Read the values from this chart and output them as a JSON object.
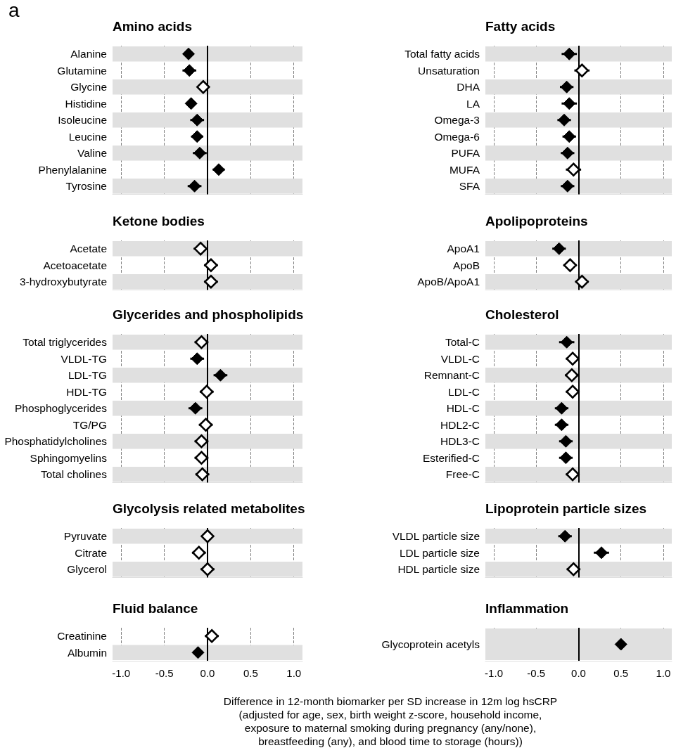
{
  "chart_data": [
    {
      "type": "scatter",
      "orientation": "horizontal",
      "title": "Amino acids",
      "annotations": [
        "a"
      ],
      "categories": [
        "Alanine",
        "Glutamine",
        "Glycine",
        "Histidine",
        "Isoleucine",
        "Leucine",
        "Valine",
        "Phenylalanine",
        "Tyrosine"
      ],
      "series": [
        {
          "color": "#000000",
          "values": [
            -0.22,
            -0.21,
            null,
            -0.19,
            -0.12,
            -0.12,
            -0.09,
            0.13,
            -0.15
          ],
          "errors": [
            0.06,
            0.08,
            null,
            0.06,
            0.08,
            0.07,
            0.08,
            0.07,
            0.08
          ]
        },
        {
          "color": "#ffffff",
          "values": [
            null,
            null,
            -0.05,
            null,
            null,
            null,
            null,
            null,
            null
          ],
          "errors": [
            null,
            null,
            0.06,
            null,
            null,
            null,
            null,
            null,
            null
          ]
        }
      ],
      "xlim": [
        -1.1,
        1.1
      ],
      "xticks": [
        -1,
        -0.5,
        0,
        0.5,
        1
      ],
      "grid": "x",
      "marker": "diamond",
      "tick_labels": "y",
      "ref_lines": [
        {
          "axis": "x",
          "value": 0,
          "color": "#000000"
        }
      ],
      "bands": [
        {
          "axis": "y",
          "from": "Alanine",
          "to": "Alanine",
          "color": "#e0e0e0"
        },
        {
          "axis": "y",
          "from": "Glycine",
          "to": "Glycine",
          "color": "#e0e0e0"
        },
        {
          "axis": "y",
          "from": "Isoleucine",
          "to": "Isoleucine",
          "color": "#e0e0e0"
        },
        {
          "axis": "y",
          "from": "Valine",
          "to": "Valine",
          "color": "#e0e0e0"
        },
        {
          "axis": "y",
          "from": "Tyrosine",
          "to": "Tyrosine",
          "color": "#e0e0e0"
        }
      ]
    },
    {
      "type": "scatter",
      "orientation": "horizontal",
      "title": "Fatty acids",
      "categories": [
        "Total fatty acids",
        "Unsaturation",
        "DHA",
        "LA",
        "Omega-3",
        "Omega-6",
        "PUFA",
        "MUFA",
        "SFA"
      ],
      "series": [
        {
          "color": "#000000",
          "values": [
            -0.11,
            null,
            -0.14,
            -0.11,
            -0.17,
            -0.11,
            -0.13,
            null,
            -0.13
          ],
          "errors": [
            0.09,
            null,
            0.08,
            0.09,
            0.08,
            0.08,
            0.08,
            null,
            0.08
          ]
        },
        {
          "color": "#ffffff",
          "values": [
            null,
            0.04,
            null,
            null,
            null,
            null,
            null,
            -0.06,
            null
          ],
          "errors": [
            null,
            0.09,
            null,
            null,
            null,
            null,
            null,
            0.09,
            null
          ]
        }
      ],
      "xlim": [
        -1.1,
        1.1
      ],
      "xticks": [
        -1,
        -0.5,
        0,
        0.5,
        1
      ],
      "grid": "x",
      "marker": "diamond",
      "tick_labels": "y",
      "ref_lines": [
        {
          "axis": "x",
          "value": 0,
          "color": "#000000"
        }
      ],
      "bands": [
        {
          "axis": "y",
          "from": "Total fatty acids",
          "to": "Total fatty acids",
          "color": "#e0e0e0"
        },
        {
          "axis": "y",
          "from": "DHA",
          "to": "DHA",
          "color": "#e0e0e0"
        },
        {
          "axis": "y",
          "from": "Omega-3",
          "to": "Omega-3",
          "color": "#e0e0e0"
        },
        {
          "axis": "y",
          "from": "PUFA",
          "to": "PUFA",
          "color": "#e0e0e0"
        },
        {
          "axis": "y",
          "from": "SFA",
          "to": "SFA",
          "color": "#e0e0e0"
        }
      ]
    },
    {
      "type": "scatter",
      "orientation": "horizontal",
      "title": "Ketone bodies",
      "categories": [
        "Acetate",
        "Acetoacetate",
        "3-hydroxybutyrate"
      ],
      "series": [
        {
          "color": "#ffffff",
          "values": [
            -0.08,
            0.04,
            0.04
          ],
          "errors": [
            0.08,
            0.08,
            0.08
          ]
        }
      ],
      "xlim": [
        -1.1,
        1.1
      ],
      "xticks": [
        -1,
        -0.5,
        0,
        0.5,
        1
      ],
      "grid": "x",
      "marker": "diamond",
      "tick_labels": "y",
      "ref_lines": [
        {
          "axis": "x",
          "value": 0,
          "color": "#000000"
        }
      ],
      "bands": [
        {
          "axis": "y",
          "from": "Acetate",
          "to": "Acetate",
          "color": "#e0e0e0"
        },
        {
          "axis": "y",
          "from": "3-hydroxybutyrate",
          "to": "3-hydroxybutyrate",
          "color": "#e0e0e0"
        }
      ]
    },
    {
      "type": "scatter",
      "orientation": "horizontal",
      "title": "Apolipoproteins",
      "categories": [
        "ApoA1",
        "ApoB",
        "ApoB/ApoA1"
      ],
      "series": [
        {
          "color": "#000000",
          "values": [
            -0.23,
            null,
            null
          ],
          "errors": [
            0.08,
            null,
            null
          ]
        },
        {
          "color": "#ffffff",
          "values": [
            null,
            -0.1,
            0.04
          ],
          "errors": [
            null,
            0.08,
            0.08
          ]
        }
      ],
      "xlim": [
        -1.1,
        1.1
      ],
      "xticks": [
        -1,
        -0.5,
        0,
        0.5,
        1
      ],
      "grid": "x",
      "marker": "diamond",
      "tick_labels": "y",
      "ref_lines": [
        {
          "axis": "x",
          "value": 0,
          "color": "#000000"
        }
      ],
      "bands": [
        {
          "axis": "y",
          "from": "ApoA1",
          "to": "ApoA1",
          "color": "#e0e0e0"
        },
        {
          "axis": "y",
          "from": "ApoB/ApoA1",
          "to": "ApoB/ApoA1",
          "color": "#e0e0e0"
        }
      ]
    },
    {
      "type": "scatter",
      "orientation": "horizontal",
      "title": "Glycerides and phospholipids",
      "categories": [
        "Total triglycerides",
        "VLDL-TG",
        "LDL-TG",
        "HDL-TG",
        "Phosphoglycerides",
        "TG/PG",
        "Phosphatidylcholines",
        "Sphingomyelins",
        "Total cholines"
      ],
      "series": [
        {
          "color": "#000000",
          "values": [
            null,
            -0.12,
            0.15,
            null,
            -0.14,
            null,
            null,
            null,
            null
          ],
          "errors": [
            null,
            0.08,
            0.08,
            null,
            0.08,
            null,
            null,
            null,
            null
          ]
        },
        {
          "color": "#ffffff",
          "values": [
            -0.07,
            null,
            null,
            -0.01,
            null,
            -0.02,
            -0.07,
            -0.07,
            -0.06
          ],
          "errors": [
            0.08,
            null,
            null,
            0.08,
            null,
            0.08,
            0.08,
            0.08,
            0.08
          ]
        }
      ],
      "xlim": [
        -1.1,
        1.1
      ],
      "xticks": [
        -1,
        -0.5,
        0,
        0.5,
        1
      ],
      "grid": "x",
      "marker": "diamond",
      "tick_labels": "y",
      "ref_lines": [
        {
          "axis": "x",
          "value": 0,
          "color": "#000000"
        }
      ],
      "bands": [
        {
          "axis": "y",
          "from": "Total triglycerides",
          "to": "Total triglycerides",
          "color": "#e0e0e0"
        },
        {
          "axis": "y",
          "from": "LDL-TG",
          "to": "LDL-TG",
          "color": "#e0e0e0"
        },
        {
          "axis": "y",
          "from": "Phosphoglycerides",
          "to": "Phosphoglycerides",
          "color": "#e0e0e0"
        },
        {
          "axis": "y",
          "from": "Phosphatidylcholines",
          "to": "Phosphatidylcholines",
          "color": "#e0e0e0"
        },
        {
          "axis": "y",
          "from": "Total cholines",
          "to": "Total cholines",
          "color": "#e0e0e0"
        }
      ]
    },
    {
      "type": "scatter",
      "orientation": "horizontal",
      "title": "Cholesterol",
      "categories": [
        "Total-C",
        "VLDL-C",
        "Remnant-C",
        "LDL-C",
        "HDL-C",
        "HDL2-C",
        "HDL3-C",
        "Esterified-C",
        "Free-C"
      ],
      "series": [
        {
          "color": "#000000",
          "values": [
            -0.14,
            null,
            null,
            null,
            -0.2,
            -0.2,
            -0.15,
            -0.15,
            null
          ],
          "errors": [
            0.09,
            null,
            null,
            null,
            0.08,
            0.08,
            0.08,
            0.08,
            null
          ]
        },
        {
          "color": "#ffffff",
          "values": [
            null,
            -0.07,
            -0.08,
            -0.07,
            null,
            null,
            null,
            null,
            -0.07
          ],
          "errors": [
            null,
            0.08,
            0.08,
            0.08,
            null,
            null,
            null,
            null,
            0.08
          ]
        }
      ],
      "xlim": [
        -1.1,
        1.1
      ],
      "xticks": [
        -1,
        -0.5,
        0,
        0.5,
        1
      ],
      "grid": "x",
      "marker": "diamond",
      "tick_labels": "y",
      "ref_lines": [
        {
          "axis": "x",
          "value": 0,
          "color": "#000000"
        }
      ],
      "bands": [
        {
          "axis": "y",
          "from": "Total-C",
          "to": "Total-C",
          "color": "#e0e0e0"
        },
        {
          "axis": "y",
          "from": "Remnant-C",
          "to": "Remnant-C",
          "color": "#e0e0e0"
        },
        {
          "axis": "y",
          "from": "HDL-C",
          "to": "HDL-C",
          "color": "#e0e0e0"
        },
        {
          "axis": "y",
          "from": "HDL3-C",
          "to": "HDL3-C",
          "color": "#e0e0e0"
        },
        {
          "axis": "y",
          "from": "Free-C",
          "to": "Free-C",
          "color": "#e0e0e0"
        }
      ]
    },
    {
      "type": "scatter",
      "orientation": "horizontal",
      "title": "Glycolysis related metabolites",
      "categories": [
        "Pyruvate",
        "Citrate",
        "Glycerol"
      ],
      "series": [
        {
          "color": "#ffffff",
          "values": [
            0.0,
            -0.1,
            0.0
          ],
          "errors": [
            0.06,
            0.08,
            0.08
          ]
        }
      ],
      "xlim": [
        -1.1,
        1.1
      ],
      "xticks": [
        -1,
        -0.5,
        0,
        0.5,
        1
      ],
      "grid": "x",
      "marker": "diamond",
      "tick_labels": "y",
      "ref_lines": [
        {
          "axis": "x",
          "value": 0,
          "color": "#000000"
        }
      ],
      "bands": [
        {
          "axis": "y",
          "from": "Pyruvate",
          "to": "Pyruvate",
          "color": "#e0e0e0"
        },
        {
          "axis": "y",
          "from": "Glycerol",
          "to": "Glycerol",
          "color": "#e0e0e0"
        }
      ]
    },
    {
      "type": "scatter",
      "orientation": "horizontal",
      "title": "Lipoprotein particle sizes",
      "categories": [
        "VLDL particle size",
        "LDL particle size",
        "HDL particle size"
      ],
      "series": [
        {
          "color": "#000000",
          "values": [
            -0.16,
            0.27,
            null
          ],
          "errors": [
            0.08,
            0.09,
            null
          ]
        },
        {
          "color": "#ffffff",
          "values": [
            null,
            null,
            -0.06
          ],
          "errors": [
            null,
            null,
            0.08
          ]
        }
      ],
      "xlim": [
        -1.1,
        1.1
      ],
      "xticks": [
        -1,
        -0.5,
        0,
        0.5,
        1
      ],
      "grid": "x",
      "marker": "diamond",
      "tick_labels": "y",
      "ref_lines": [
        {
          "axis": "x",
          "value": 0,
          "color": "#000000"
        }
      ],
      "bands": [
        {
          "axis": "y",
          "from": "VLDL particle size",
          "to": "VLDL particle size",
          "color": "#e0e0e0"
        },
        {
          "axis": "y",
          "from": "HDL particle size",
          "to": "HDL particle size",
          "color": "#e0e0e0"
        }
      ]
    },
    {
      "type": "scatter",
      "orientation": "horizontal",
      "title": "Fluid balance",
      "annotations": [
        "Difference in 12-month biomarker per SD increase in 12m log hsCRP\n(adjusted for age, sex, birth weight z-score, household income,\nexposure to maternal smoking during pregnancy (any/none),\nbreastfeeding (any), and blood time to storage (hours))"
      ],
      "categories": [
        "Creatinine",
        "Albumin"
      ],
      "series": [
        {
          "color": "#000000",
          "values": [
            null,
            -0.11
          ],
          "errors": [
            null,
            0.06
          ]
        },
        {
          "color": "#ffffff",
          "values": [
            0.05,
            null
          ],
          "errors": [
            0.08,
            null
          ]
        }
      ],
      "xlim": [
        -1.1,
        1.1
      ],
      "xticks": [
        {
          "value": -1,
          "label": "-1.0"
        },
        {
          "value": -0.5,
          "label": "-0.5"
        },
        {
          "value": 0,
          "label": "0.0"
        },
        {
          "value": 0.5,
          "label": "0.5"
        },
        {
          "value": 1,
          "label": "1.0"
        }
      ],
      "grid": "x",
      "marker": "diamond",
      "ref_lines": [
        {
          "axis": "x",
          "value": 0,
          "color": "#000000"
        }
      ],
      "bands": [
        {
          "axis": "y",
          "from": "Albumin",
          "to": "Albumin",
          "color": "#e0e0e0"
        }
      ]
    },
    {
      "type": "scatter",
      "orientation": "horizontal",
      "title": "Inflammation",
      "categories": [
        "Glycoprotein acetyls"
      ],
      "series": [
        {
          "color": "#000000",
          "values": [
            0.5
          ],
          "errors": [
            0.06
          ]
        }
      ],
      "xlim": [
        -1.1,
        1.1
      ],
      "xticks": [
        {
          "value": -1,
          "label": "-1.0"
        },
        {
          "value": -0.5,
          "label": "-0.5"
        },
        {
          "value": 0,
          "label": "0.0"
        },
        {
          "value": 0.5,
          "label": "0.5"
        },
        {
          "value": 1,
          "label": "1.0"
        }
      ],
      "grid": "x",
      "marker": "diamond",
      "ref_lines": [
        {
          "axis": "x",
          "value": 0,
          "color": "#000000"
        }
      ],
      "bands": [
        {
          "axis": "y",
          "from": "Glycoprotein acetyls",
          "to": "Glycoprotein acetyls",
          "color": "#e0e0e0"
        }
      ]
    }
  ]
}
